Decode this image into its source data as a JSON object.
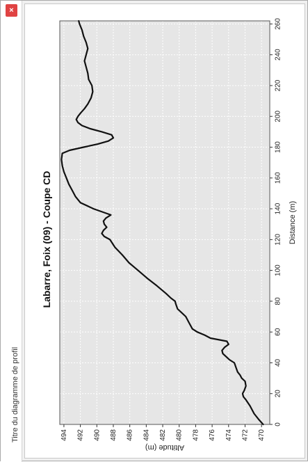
{
  "window": {
    "title": "Titre du diagramme de profil",
    "close_label": "×",
    "close_color": "#e04343"
  },
  "chart_data": {
    "type": "line",
    "title": "Labarre, Foix (09) - Coupe CD",
    "xlabel": "Distance (m)",
    "ylabel": "Altitude (m)",
    "xlim": [
      0,
      262
    ],
    "ylim": [
      469,
      494.5
    ],
    "x_ticks": [
      0,
      20,
      40,
      60,
      80,
      100,
      120,
      140,
      160,
      180,
      200,
      220,
      240,
      260
    ],
    "y_ticks": [
      470,
      472,
      474,
      476,
      478,
      480,
      482,
      484,
      486,
      488,
      490,
      492,
      494
    ],
    "grid": true,
    "plot_background": "#e6e6e6",
    "line_color": "#111111",
    "orientation": "rotated 90° counter-clockwise",
    "series": [
      {
        "x": [
          0,
          3,
          7,
          12,
          16,
          18,
          20,
          22,
          25,
          28,
          30,
          32,
          34,
          37,
          40,
          42,
          44,
          46,
          48,
          50,
          52,
          54,
          56,
          58,
          60,
          62,
          66,
          70,
          72,
          75,
          78,
          80,
          82,
          85,
          90,
          95,
          100,
          105,
          110,
          115,
          120,
          122,
          124,
          126,
          128,
          130,
          132,
          134,
          136,
          140,
          144,
          148,
          152,
          156,
          160,
          164,
          168,
          172,
          176,
          178,
          180,
          182,
          184,
          186,
          188,
          190,
          192,
          194,
          196,
          198,
          200,
          202,
          205,
          208,
          212,
          216,
          220,
          224,
          228,
          232,
          236,
          240,
          244,
          248,
          252,
          256,
          260,
          262
        ],
        "y": [
          469.8,
          470.3,
          470.9,
          471.4,
          471.9,
          472.2,
          472.3,
          472.1,
          471.9,
          472.0,
          472.4,
          472.6,
          472.9,
          473.1,
          473.3,
          473.9,
          474.3,
          474.7,
          474.8,
          474.5,
          474.0,
          474.2,
          476.2,
          476.9,
          477.8,
          478.4,
          478.8,
          479.2,
          479.6,
          480.2,
          480.4,
          480.5,
          481.0,
          481.6,
          482.7,
          483.9,
          485.0,
          486.1,
          486.9,
          487.8,
          488.4,
          489.1,
          489.4,
          489.2,
          488.8,
          489.1,
          489.2,
          488.9,
          488.3,
          490.4,
          492.0,
          492.6,
          493.0,
          493.4,
          493.7,
          494.0,
          494.2,
          494.3,
          494.2,
          493.3,
          491.6,
          489.9,
          488.6,
          488.0,
          488.2,
          489.4,
          490.8,
          491.8,
          492.3,
          492.5,
          492.3,
          492.0,
          491.5,
          491.1,
          490.7,
          490.5,
          490.6,
          491.0,
          491.1,
          491.3,
          491.5,
          491.3,
          491.1,
          491.3,
          491.6,
          491.8,
          492.1,
          492.2
        ]
      }
    ]
  }
}
